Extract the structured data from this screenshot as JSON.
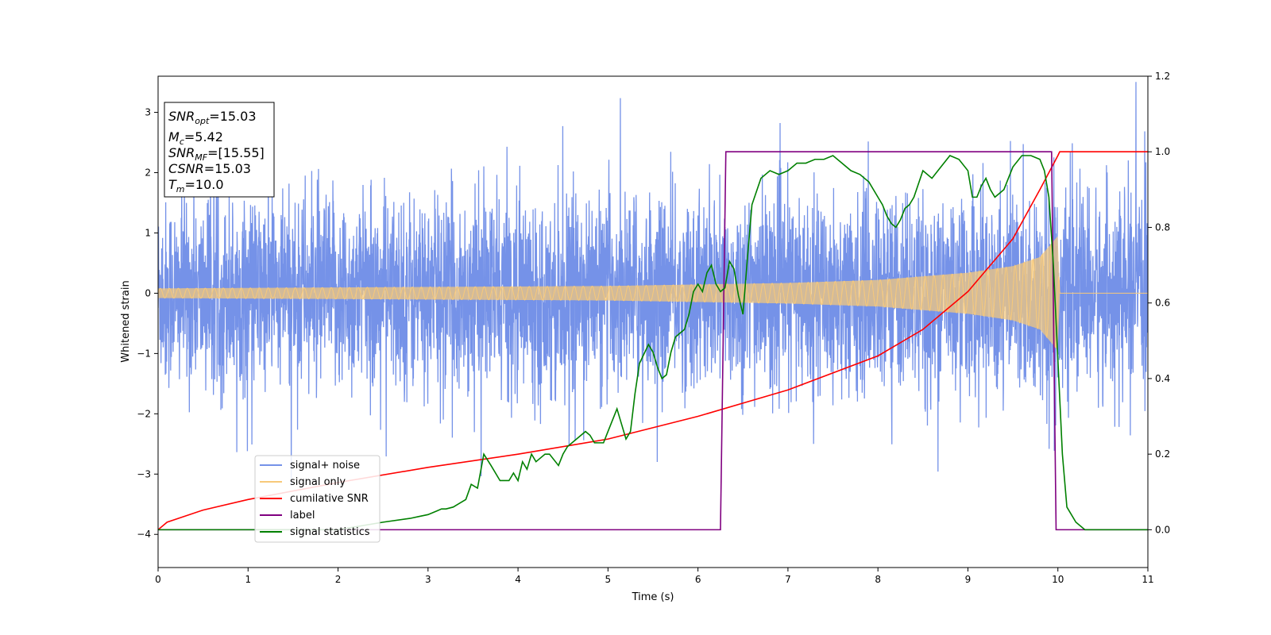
{
  "chart_data": {
    "type": "line",
    "xlabel": "Time (s)",
    "ylabel": "Whitened strain",
    "xlim": [
      0,
      11
    ],
    "ylim": [
      -4.55,
      3.6
    ],
    "y2lim": [
      -0.1,
      1.2
    ],
    "x_ticks": [
      "0",
      "1",
      "2",
      "3",
      "4",
      "5",
      "6",
      "7",
      "8",
      "9",
      "10",
      "11"
    ],
    "y_ticks": [
      "−4",
      "−3",
      "−2",
      "−1",
      "0",
      "1",
      "2",
      "3"
    ],
    "y2_ticks": [
      "0.0",
      "0.2",
      "0.4",
      "0.6",
      "0.8",
      "1.0",
      "1.2"
    ],
    "grid": false,
    "legend_position": "lower-left",
    "annotation": {
      "line1": {
        "main": "SNR",
        "sub": "opt",
        "rest": "=15.03"
      },
      "line2": {
        "main": "M",
        "sub": "c",
        "rest": "=5.42"
      },
      "line3": {
        "main": "SNR",
        "sub": "MF",
        "rest": "=[15.55]"
      },
      "line4": {
        "main": "CSNR",
        "sub": "",
        "rest": "=15.03"
      },
      "line5": {
        "main": "T",
        "sub": "m",
        "rest": "=10.0"
      }
    },
    "series": [
      {
        "name": "signal+ noise",
        "color": "#7592e8",
        "axis": "left",
        "noise_std": 0.78,
        "chirp_end": 10.0
      },
      {
        "name": "signal only",
        "color": "#f7c97a",
        "axis": "left",
        "envelope": [
          [
            0,
            0.08
          ],
          [
            5,
            0.12
          ],
          [
            7,
            0.17
          ],
          [
            8,
            0.22
          ],
          [
            9,
            0.34
          ],
          [
            9.5,
            0.45
          ],
          [
            9.8,
            0.6
          ],
          [
            10.0,
            0.95
          ],
          [
            10.02,
            0.0
          ],
          [
            11,
            0.0
          ]
        ]
      },
      {
        "name": "cumilative SNR",
        "color": "#ff0000",
        "axis": "right",
        "x": [
          0,
          0.1,
          0.5,
          1,
          2,
          3,
          4,
          5,
          6,
          7,
          8,
          8.5,
          9,
          9.5,
          9.8,
          10.0,
          10.02,
          11
        ],
        "y": [
          0.0,
          0.02,
          0.052,
          0.08,
          0.125,
          0.165,
          0.2,
          0.24,
          0.3,
          0.37,
          0.46,
          0.53,
          0.63,
          0.77,
          0.9,
          0.99,
          1.0,
          1.0
        ]
      },
      {
        "name": "label",
        "color": "#800080",
        "axis": "right",
        "x": [
          0,
          6.25,
          6.31,
          9.93,
          9.98,
          11
        ],
        "y": [
          0.0,
          0.0,
          1.0,
          1.0,
          0.0,
          0.0
        ]
      },
      {
        "name": "signal statistics",
        "color": "#008000",
        "axis": "right",
        "x": [
          0,
          1,
          2,
          2.5,
          2.8,
          2.9,
          3.0,
          3.1,
          3.15,
          3.2,
          3.28,
          3.35,
          3.42,
          3.48,
          3.55,
          3.62,
          3.7,
          3.8,
          3.9,
          3.95,
          4.0,
          4.05,
          4.1,
          4.15,
          4.2,
          4.3,
          4.35,
          4.45,
          4.5,
          4.55,
          4.65,
          4.75,
          4.8,
          4.85,
          4.95,
          5.0,
          5.05,
          5.1,
          5.15,
          5.2,
          5.25,
          5.3,
          5.35,
          5.45,
          5.5,
          5.55,
          5.6,
          5.65,
          5.7,
          5.75,
          5.8,
          5.85,
          5.9,
          5.95,
          6.0,
          6.05,
          6.1,
          6.15,
          6.2,
          6.25,
          6.3,
          6.35,
          6.4,
          6.45,
          6.5,
          6.55,
          6.6,
          6.7,
          6.8,
          6.9,
          7.0,
          7.1,
          7.2,
          7.3,
          7.4,
          7.5,
          7.6,
          7.7,
          7.8,
          7.9,
          8.0,
          8.05,
          8.1,
          8.15,
          8.2,
          8.25,
          8.3,
          8.35,
          8.4,
          8.5,
          8.6,
          8.7,
          8.8,
          8.9,
          9.0,
          9.05,
          9.1,
          9.15,
          9.2,
          9.25,
          9.3,
          9.35,
          9.4,
          9.5,
          9.6,
          9.7,
          9.8,
          9.85,
          9.9,
          9.95,
          10.0,
          10.05,
          10.1,
          10.2,
          10.3,
          11
        ],
        "y": [
          0.0,
          0.0,
          0.0,
          0.02,
          0.03,
          0.035,
          0.04,
          0.05,
          0.055,
          0.055,
          0.06,
          0.07,
          0.08,
          0.12,
          0.11,
          0.2,
          0.17,
          0.13,
          0.13,
          0.15,
          0.13,
          0.18,
          0.16,
          0.2,
          0.18,
          0.2,
          0.2,
          0.17,
          0.2,
          0.22,
          0.24,
          0.26,
          0.25,
          0.23,
          0.23,
          0.26,
          0.29,
          0.32,
          0.28,
          0.24,
          0.26,
          0.36,
          0.44,
          0.49,
          0.47,
          0.43,
          0.4,
          0.41,
          0.47,
          0.51,
          0.52,
          0.53,
          0.57,
          0.63,
          0.65,
          0.63,
          0.68,
          0.7,
          0.65,
          0.63,
          0.64,
          0.71,
          0.69,
          0.62,
          0.57,
          0.72,
          0.86,
          0.93,
          0.95,
          0.94,
          0.95,
          0.97,
          0.97,
          0.98,
          0.98,
          0.99,
          0.97,
          0.95,
          0.94,
          0.92,
          0.88,
          0.86,
          0.83,
          0.81,
          0.8,
          0.82,
          0.85,
          0.86,
          0.88,
          0.95,
          0.93,
          0.96,
          0.99,
          0.98,
          0.95,
          0.88,
          0.88,
          0.91,
          0.93,
          0.9,
          0.88,
          0.89,
          0.9,
          0.96,
          0.99,
          0.99,
          0.98,
          0.95,
          0.88,
          0.7,
          0.45,
          0.2,
          0.06,
          0.02,
          0.0,
          0.0
        ]
      }
    ]
  }
}
